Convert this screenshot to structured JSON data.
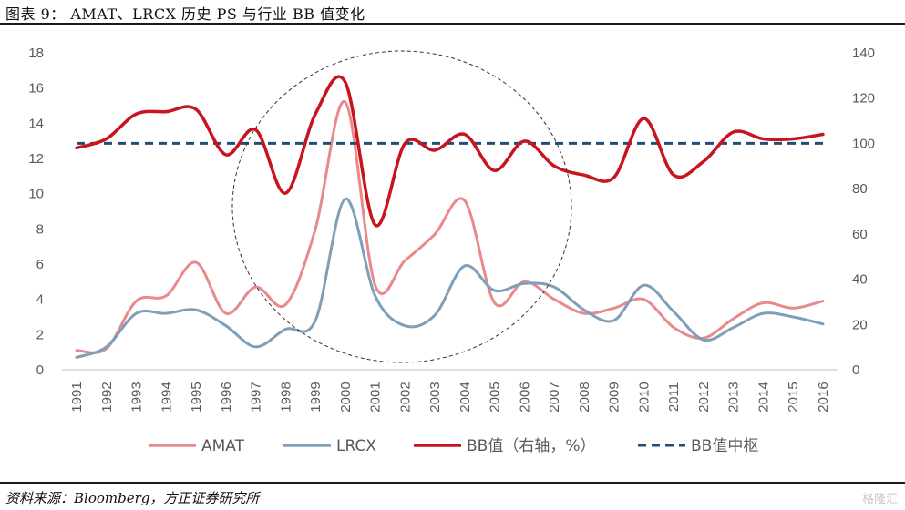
{
  "title": "图表 9： AMAT、LRCX 历史 PS 与行业 BB 值变化",
  "source": "资料来源：Bloomberg，方正证券研究所",
  "watermark": "格隆汇",
  "chart_data": {
    "type": "line",
    "x": [
      1991,
      1992,
      1993,
      1994,
      1995,
      1996,
      1997,
      1998,
      1999,
      2000,
      2001,
      2002,
      2003,
      2004,
      2005,
      2006,
      2007,
      2008,
      2009,
      2010,
      2011,
      2012,
      2013,
      2014,
      2015,
      2016
    ],
    "y_left": {
      "range": [
        0,
        18
      ],
      "ticks": [
        0,
        2,
        4,
        6,
        8,
        10,
        12,
        14,
        16,
        18
      ]
    },
    "y_right": {
      "range": [
        0,
        140
      ],
      "ticks": [
        0,
        20,
        40,
        60,
        80,
        100,
        120,
        140
      ]
    },
    "series": [
      {
        "name": "AMAT",
        "axis": "left",
        "color": "#e88a8c",
        "style": "solid",
        "values": [
          1.1,
          1.2,
          3.9,
          4.2,
          6.1,
          3.2,
          4.7,
          3.7,
          8.0,
          15.2,
          4.8,
          6.2,
          7.7,
          9.6,
          3.8,
          5.0,
          4.0,
          3.2,
          3.5,
          4.0,
          2.4,
          1.8,
          2.9,
          3.8,
          3.5,
          3.9
        ]
      },
      {
        "name": "LRCX",
        "axis": "left",
        "color": "#7f9fb8",
        "style": "solid",
        "values": [
          0.7,
          1.3,
          3.2,
          3.2,
          3.4,
          2.5,
          1.3,
          2.3,
          2.8,
          9.7,
          4.2,
          2.5,
          3.1,
          5.9,
          4.5,
          4.9,
          4.7,
          3.4,
          2.8,
          4.8,
          3.3,
          1.7,
          2.4,
          3.2,
          3.0,
          2.6
        ]
      },
      {
        "name": "BB值（右轴，%）",
        "axis": "right",
        "color": "#c8141e",
        "style": "solid",
        "values": [
          98,
          102,
          113,
          114,
          115,
          95,
          106,
          78,
          113,
          127,
          64,
          100,
          97,
          104,
          88,
          101,
          90,
          86,
          85,
          111,
          86,
          92,
          105,
          102,
          102,
          104
        ]
      },
      {
        "name": "BB值中枢",
        "axis": "right",
        "color": "#1f4e79",
        "style": "dashed",
        "values": [
          100,
          100,
          100,
          100,
          100,
          100,
          100,
          100,
          100,
          100,
          100,
          100,
          100,
          100,
          100,
          100,
          100,
          100,
          100,
          100,
          100,
          100,
          100,
          100,
          100,
          100
        ]
      }
    ],
    "legend_position": "bottom",
    "grid": false,
    "annotation": "dashed ellipse highlighting 1997-2006"
  }
}
